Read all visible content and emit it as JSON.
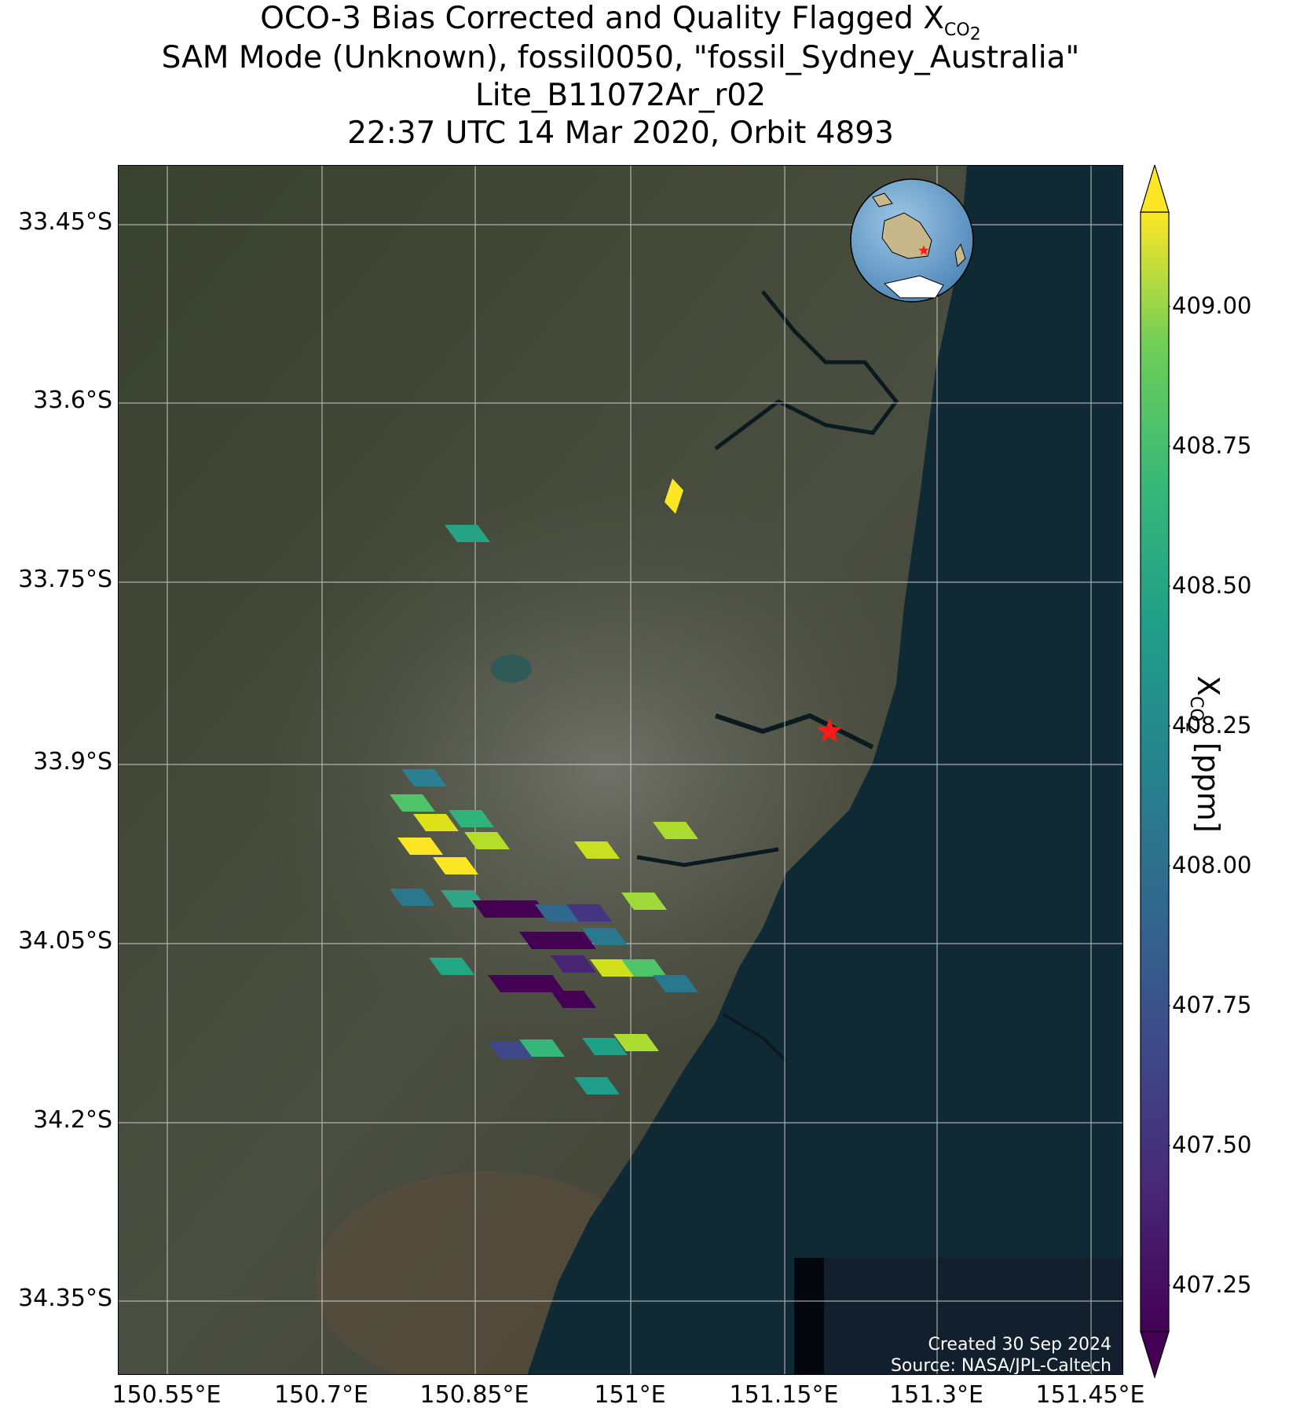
{
  "title": {
    "line1_main": "OCO-3 Bias Corrected and Quality Flagged X",
    "line1_sub": "CO",
    "line1_subsub": "2",
    "line2": "SAM Mode (Unknown), fossil0050, \"fossil_Sydney_Australia\"",
    "line3": "Lite_B11072Ar_r02",
    "line4": "22:37 UTC 14 Mar 2020, Orbit 4893"
  },
  "map": {
    "lat_ticks": [
      "33.45°S",
      "33.6°S",
      "33.75°S",
      "33.9°S",
      "34.05°S",
      "34.2°S",
      "34.35°S"
    ],
    "lon_ticks": [
      "150.55°E",
      "150.7°E",
      "150.85°E",
      "151°E",
      "151.15°E",
      "151.3°E",
      "151.45°E"
    ],
    "target_marker": "red-star",
    "target_name": "fossil_Sydney_Australia",
    "inset": "globe-locator",
    "credit_line1": "Created 30 Sep 2024",
    "credit_line2": "Source: NASA/JPL-Caltech"
  },
  "colorbar": {
    "colormap": "viridis",
    "ticks": [
      "409.00",
      "408.75",
      "408.50",
      "408.25",
      "408.00",
      "407.75",
      "407.50",
      "407.25"
    ],
    "label_main": "X",
    "label_sub": "CO",
    "label_subsub": "2",
    "label_unit": " [ppm]",
    "extend": "both"
  },
  "colors": {
    "land": "#3f4735",
    "ocean": "#0f2a35",
    "target_marker": "#ff1a1a"
  }
}
